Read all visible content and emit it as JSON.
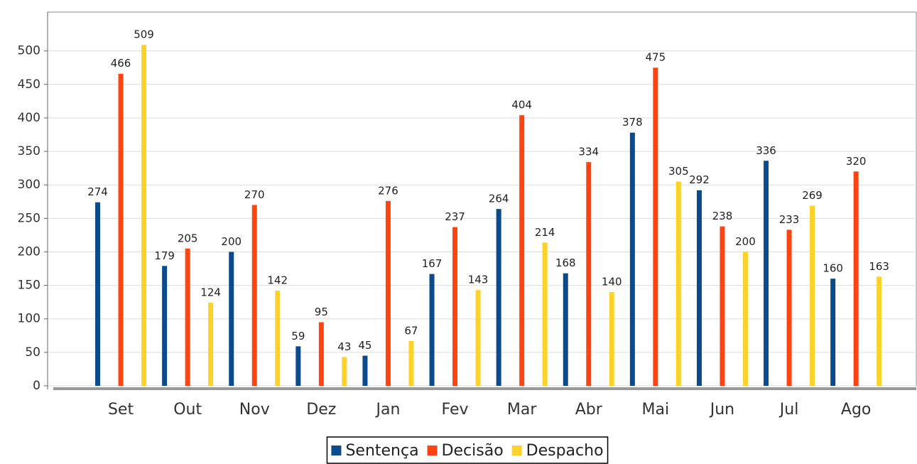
{
  "chart_data": {
    "type": "bar",
    "categories": [
      "Set",
      "Out",
      "Nov",
      "Dez",
      "Jan",
      "Fev",
      "Mar",
      "Abr",
      "Mai",
      "Jun",
      "Jul",
      "Ago"
    ],
    "series": [
      {
        "name": "Sentença",
        "color": "#0b4a8c",
        "values": [
          274,
          179,
          200,
          59,
          45,
          167,
          264,
          168,
          378,
          292,
          336,
          160
        ]
      },
      {
        "name": "Decisão",
        "color": "#ff4412",
        "values": [
          466,
          205,
          270,
          95,
          276,
          237,
          404,
          334,
          475,
          238,
          233,
          320
        ]
      },
      {
        "name": "Despacho",
        "color": "#ffd22a",
        "values": [
          509,
          124,
          142,
          43,
          67,
          143,
          214,
          140,
          305,
          200,
          269,
          163
        ]
      }
    ],
    "ylim": [
      0,
      558
    ],
    "yticks": [
      0,
      50,
      100,
      150,
      200,
      250,
      300,
      350,
      400,
      450,
      500
    ],
    "grid": true,
    "legend": "bottom"
  }
}
